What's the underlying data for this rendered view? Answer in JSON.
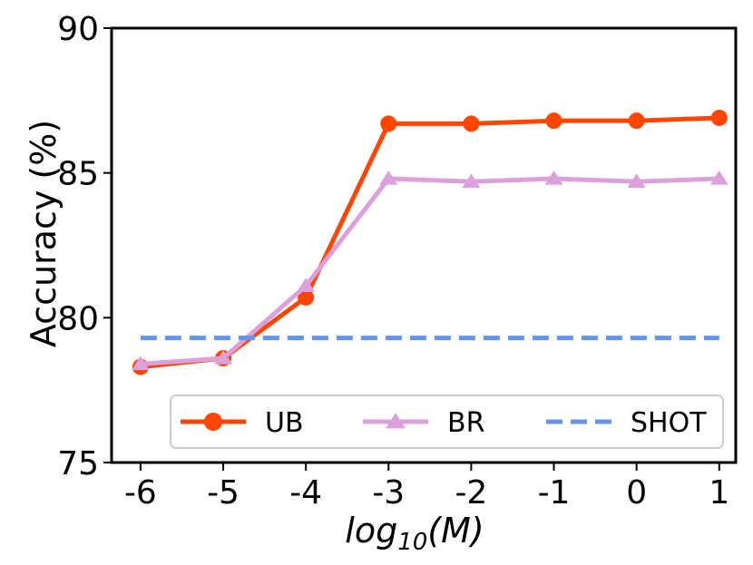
{
  "chart_data": {
    "type": "line",
    "title": "",
    "xlabel_base": "log",
    "xlabel_sub": "10",
    "xlabel_arg": "(M)",
    "ylabel": "Accuracy (%)",
    "x": [
      -6,
      -5,
      -4,
      -3,
      -2,
      -1,
      0,
      1
    ],
    "x_tick_labels": [
      "-6",
      "-5",
      "-4",
      "-3",
      "-2",
      "-1",
      "0",
      "1"
    ],
    "xlim": [
      -6.35,
      1.2
    ],
    "ylim": [
      75,
      90
    ],
    "y_ticks": [
      75,
      80,
      85,
      90
    ],
    "y_tick_labels": [
      "75",
      "80",
      "85",
      "90"
    ],
    "grid": false,
    "legend_position": "lower-right",
    "series": [
      {
        "name": "UB",
        "color": "#ff4500",
        "marker": "circle",
        "style": "solid",
        "values": [
          78.3,
          78.6,
          80.7,
          86.7,
          86.7,
          86.8,
          86.8,
          86.9
        ]
      },
      {
        "name": "BR",
        "color": "#dda0dd",
        "marker": "triangle",
        "style": "solid",
        "values": [
          78.4,
          78.6,
          81.1,
          84.8,
          84.7,
          84.8,
          84.7,
          84.8
        ]
      },
      {
        "name": "SHOT",
        "color": "#6495ed",
        "marker": "none",
        "style": "dashed",
        "x": [
          -6,
          1
        ],
        "values": [
          79.3,
          79.3
        ]
      }
    ]
  }
}
